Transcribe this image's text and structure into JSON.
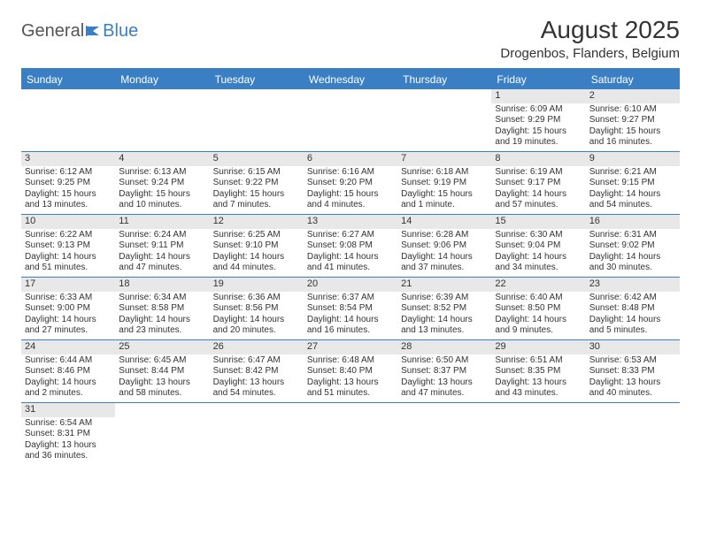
{
  "logo": {
    "part1": "General",
    "part2": "Blue"
  },
  "title": "August 2025",
  "location": "Drogenbos, Flanders, Belgium",
  "colors": {
    "brand": "#3a7fc4",
    "daynum_bg": "#e8e8e8",
    "text": "#333333"
  },
  "daysOfWeek": [
    "Sunday",
    "Monday",
    "Tuesday",
    "Wednesday",
    "Thursday",
    "Friday",
    "Saturday"
  ],
  "weeks": [
    [
      {
        "n": "",
        "sr": "",
        "ss": "",
        "dl": ""
      },
      {
        "n": "",
        "sr": "",
        "ss": "",
        "dl": ""
      },
      {
        "n": "",
        "sr": "",
        "ss": "",
        "dl": ""
      },
      {
        "n": "",
        "sr": "",
        "ss": "",
        "dl": ""
      },
      {
        "n": "",
        "sr": "",
        "ss": "",
        "dl": ""
      },
      {
        "n": "1",
        "sr": "Sunrise: 6:09 AM",
        "ss": "Sunset: 9:29 PM",
        "dl": "Daylight: 15 hours and 19 minutes."
      },
      {
        "n": "2",
        "sr": "Sunrise: 6:10 AM",
        "ss": "Sunset: 9:27 PM",
        "dl": "Daylight: 15 hours and 16 minutes."
      }
    ],
    [
      {
        "n": "3",
        "sr": "Sunrise: 6:12 AM",
        "ss": "Sunset: 9:25 PM",
        "dl": "Daylight: 15 hours and 13 minutes."
      },
      {
        "n": "4",
        "sr": "Sunrise: 6:13 AM",
        "ss": "Sunset: 9:24 PM",
        "dl": "Daylight: 15 hours and 10 minutes."
      },
      {
        "n": "5",
        "sr": "Sunrise: 6:15 AM",
        "ss": "Sunset: 9:22 PM",
        "dl": "Daylight: 15 hours and 7 minutes."
      },
      {
        "n": "6",
        "sr": "Sunrise: 6:16 AM",
        "ss": "Sunset: 9:20 PM",
        "dl": "Daylight: 15 hours and 4 minutes."
      },
      {
        "n": "7",
        "sr": "Sunrise: 6:18 AM",
        "ss": "Sunset: 9:19 PM",
        "dl": "Daylight: 15 hours and 1 minute."
      },
      {
        "n": "8",
        "sr": "Sunrise: 6:19 AM",
        "ss": "Sunset: 9:17 PM",
        "dl": "Daylight: 14 hours and 57 minutes."
      },
      {
        "n": "9",
        "sr": "Sunrise: 6:21 AM",
        "ss": "Sunset: 9:15 PM",
        "dl": "Daylight: 14 hours and 54 minutes."
      }
    ],
    [
      {
        "n": "10",
        "sr": "Sunrise: 6:22 AM",
        "ss": "Sunset: 9:13 PM",
        "dl": "Daylight: 14 hours and 51 minutes."
      },
      {
        "n": "11",
        "sr": "Sunrise: 6:24 AM",
        "ss": "Sunset: 9:11 PM",
        "dl": "Daylight: 14 hours and 47 minutes."
      },
      {
        "n": "12",
        "sr": "Sunrise: 6:25 AM",
        "ss": "Sunset: 9:10 PM",
        "dl": "Daylight: 14 hours and 44 minutes."
      },
      {
        "n": "13",
        "sr": "Sunrise: 6:27 AM",
        "ss": "Sunset: 9:08 PM",
        "dl": "Daylight: 14 hours and 41 minutes."
      },
      {
        "n": "14",
        "sr": "Sunrise: 6:28 AM",
        "ss": "Sunset: 9:06 PM",
        "dl": "Daylight: 14 hours and 37 minutes."
      },
      {
        "n": "15",
        "sr": "Sunrise: 6:30 AM",
        "ss": "Sunset: 9:04 PM",
        "dl": "Daylight: 14 hours and 34 minutes."
      },
      {
        "n": "16",
        "sr": "Sunrise: 6:31 AM",
        "ss": "Sunset: 9:02 PM",
        "dl": "Daylight: 14 hours and 30 minutes."
      }
    ],
    [
      {
        "n": "17",
        "sr": "Sunrise: 6:33 AM",
        "ss": "Sunset: 9:00 PM",
        "dl": "Daylight: 14 hours and 27 minutes."
      },
      {
        "n": "18",
        "sr": "Sunrise: 6:34 AM",
        "ss": "Sunset: 8:58 PM",
        "dl": "Daylight: 14 hours and 23 minutes."
      },
      {
        "n": "19",
        "sr": "Sunrise: 6:36 AM",
        "ss": "Sunset: 8:56 PM",
        "dl": "Daylight: 14 hours and 20 minutes."
      },
      {
        "n": "20",
        "sr": "Sunrise: 6:37 AM",
        "ss": "Sunset: 8:54 PM",
        "dl": "Daylight: 14 hours and 16 minutes."
      },
      {
        "n": "21",
        "sr": "Sunrise: 6:39 AM",
        "ss": "Sunset: 8:52 PM",
        "dl": "Daylight: 14 hours and 13 minutes."
      },
      {
        "n": "22",
        "sr": "Sunrise: 6:40 AM",
        "ss": "Sunset: 8:50 PM",
        "dl": "Daylight: 14 hours and 9 minutes."
      },
      {
        "n": "23",
        "sr": "Sunrise: 6:42 AM",
        "ss": "Sunset: 8:48 PM",
        "dl": "Daylight: 14 hours and 5 minutes."
      }
    ],
    [
      {
        "n": "24",
        "sr": "Sunrise: 6:44 AM",
        "ss": "Sunset: 8:46 PM",
        "dl": "Daylight: 14 hours and 2 minutes."
      },
      {
        "n": "25",
        "sr": "Sunrise: 6:45 AM",
        "ss": "Sunset: 8:44 PM",
        "dl": "Daylight: 13 hours and 58 minutes."
      },
      {
        "n": "26",
        "sr": "Sunrise: 6:47 AM",
        "ss": "Sunset: 8:42 PM",
        "dl": "Daylight: 13 hours and 54 minutes."
      },
      {
        "n": "27",
        "sr": "Sunrise: 6:48 AM",
        "ss": "Sunset: 8:40 PM",
        "dl": "Daylight: 13 hours and 51 minutes."
      },
      {
        "n": "28",
        "sr": "Sunrise: 6:50 AM",
        "ss": "Sunset: 8:37 PM",
        "dl": "Daylight: 13 hours and 47 minutes."
      },
      {
        "n": "29",
        "sr": "Sunrise: 6:51 AM",
        "ss": "Sunset: 8:35 PM",
        "dl": "Daylight: 13 hours and 43 minutes."
      },
      {
        "n": "30",
        "sr": "Sunrise: 6:53 AM",
        "ss": "Sunset: 8:33 PM",
        "dl": "Daylight: 13 hours and 40 minutes."
      }
    ],
    [
      {
        "n": "31",
        "sr": "Sunrise: 6:54 AM",
        "ss": "Sunset: 8:31 PM",
        "dl": "Daylight: 13 hours and 36 minutes."
      },
      {
        "n": "",
        "sr": "",
        "ss": "",
        "dl": ""
      },
      {
        "n": "",
        "sr": "",
        "ss": "",
        "dl": ""
      },
      {
        "n": "",
        "sr": "",
        "ss": "",
        "dl": ""
      },
      {
        "n": "",
        "sr": "",
        "ss": "",
        "dl": ""
      },
      {
        "n": "",
        "sr": "",
        "ss": "",
        "dl": ""
      },
      {
        "n": "",
        "sr": "",
        "ss": "",
        "dl": ""
      }
    ]
  ]
}
